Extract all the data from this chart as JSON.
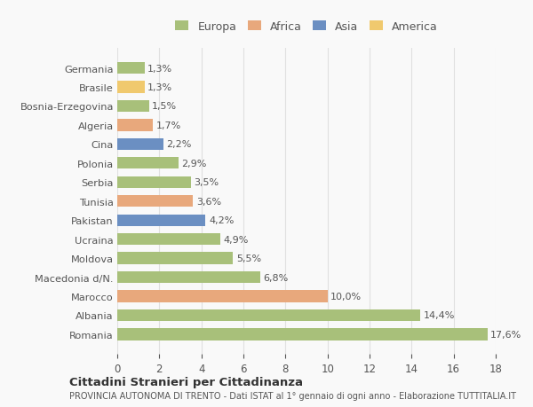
{
  "countries": [
    "Romania",
    "Albania",
    "Marocco",
    "Macedonia d/N.",
    "Moldova",
    "Ucraina",
    "Pakistan",
    "Tunisia",
    "Serbia",
    "Polonia",
    "Cina",
    "Algeria",
    "Bosnia-Erzegovina",
    "Brasile",
    "Germania"
  ],
  "values": [
    17.6,
    14.4,
    10.0,
    6.8,
    5.5,
    4.9,
    4.2,
    3.6,
    3.5,
    2.9,
    2.2,
    1.7,
    1.5,
    1.3,
    1.3
  ],
  "labels": [
    "17,6%",
    "14,4%",
    "10,0%",
    "6,8%",
    "5,5%",
    "4,9%",
    "4,2%",
    "3,6%",
    "3,5%",
    "2,9%",
    "2,2%",
    "1,7%",
    "1,5%",
    "1,3%",
    "1,3%"
  ],
  "continents": [
    "Europa",
    "Europa",
    "Africa",
    "Europa",
    "Europa",
    "Europa",
    "Asia",
    "Africa",
    "Europa",
    "Europa",
    "Asia",
    "Africa",
    "Europa",
    "America",
    "Europa"
  ],
  "colors": {
    "Europa": "#a8c07a",
    "Africa": "#e8a87c",
    "Asia": "#6b8fc2",
    "America": "#f0c96e"
  },
  "legend_order": [
    "Europa",
    "Africa",
    "Asia",
    "America"
  ],
  "legend_colors": [
    "#a8c07a",
    "#e8a87c",
    "#6b8fc2",
    "#f0c96e"
  ],
  "xlim": [
    0,
    18
  ],
  "xticks": [
    0,
    2,
    4,
    6,
    8,
    10,
    12,
    14,
    16,
    18
  ],
  "title": "Cittadini Stranieri per Cittadinanza",
  "subtitle": "PROVINCIA AUTONOMA DI TRENTO - Dati ISTAT al 1° gennaio di ogni anno - Elaborazione TUTTITALIA.IT",
  "bg_color": "#f9f9f9",
  "grid_color": "#e0e0e0"
}
